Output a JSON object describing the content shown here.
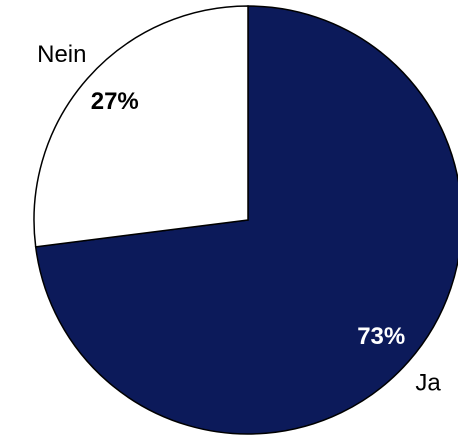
{
  "chart_data": {
    "type": "pie",
    "categories": [
      "Ja",
      "Nein"
    ],
    "values": [
      73,
      27
    ],
    "value_labels": [
      "73%",
      "27%"
    ],
    "colors": [
      "#0c1a5a",
      "#ffffff"
    ]
  }
}
